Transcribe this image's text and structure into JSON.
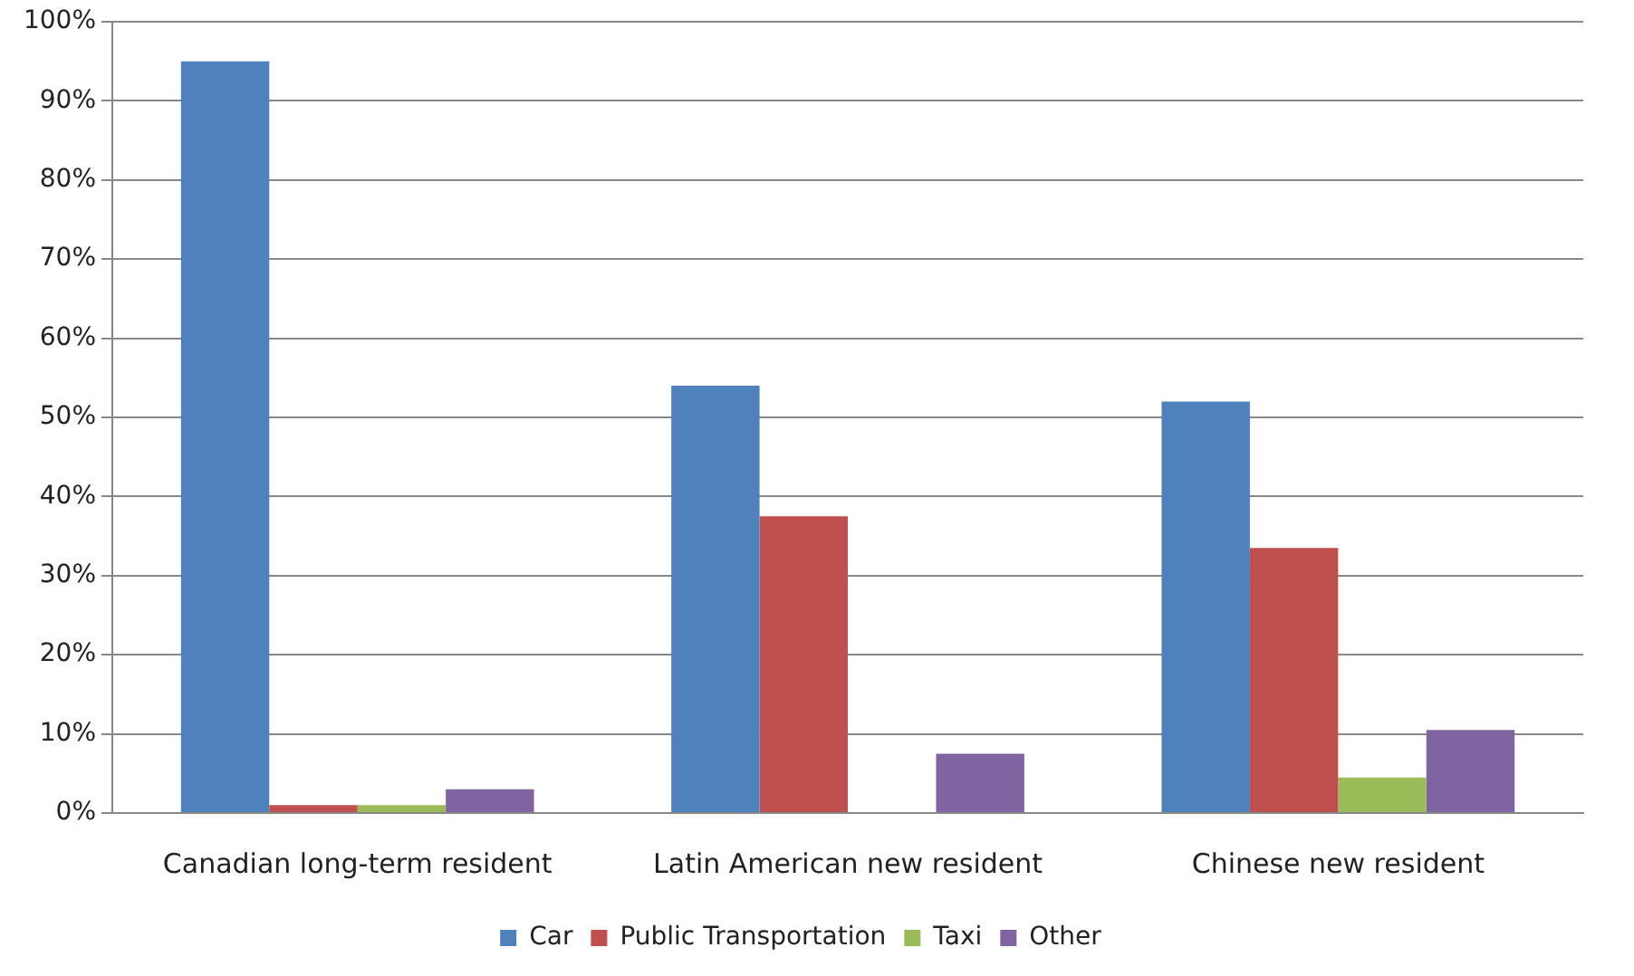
{
  "chart_data": {
    "type": "bar",
    "categories": [
      "Canadian long-term resident",
      "Latin American new resident",
      "Chinese new resident"
    ],
    "series": [
      {
        "name": "Car",
        "color": "#4f81bd",
        "values": [
          95,
          54,
          52
        ]
      },
      {
        "name": "Public Transportation",
        "color": "#c0504d",
        "values": [
          1,
          37.5,
          33.5
        ]
      },
      {
        "name": "Taxi",
        "color": "#9bbb59",
        "values": [
          1,
          0,
          4.5
        ]
      },
      {
        "name": "Other",
        "color": "#8064a2",
        "values": [
          3,
          7.5,
          10.5
        ]
      }
    ],
    "ylim": [
      0,
      100
    ],
    "yticks": [
      {
        "value": 0,
        "label": "0%"
      },
      {
        "value": 10,
        "label": "10%"
      },
      {
        "value": 20,
        "label": "20%"
      },
      {
        "value": 30,
        "label": "30%"
      },
      {
        "value": 40,
        "label": "40%"
      },
      {
        "value": 50,
        "label": "50%"
      },
      {
        "value": 60,
        "label": "60%"
      },
      {
        "value": 70,
        "label": "70%"
      },
      {
        "value": 80,
        "label": "80%"
      },
      {
        "value": 90,
        "label": "90%"
      },
      {
        "value": 100,
        "label": "100%"
      }
    ],
    "grid": "y",
    "legend": "bottom"
  }
}
